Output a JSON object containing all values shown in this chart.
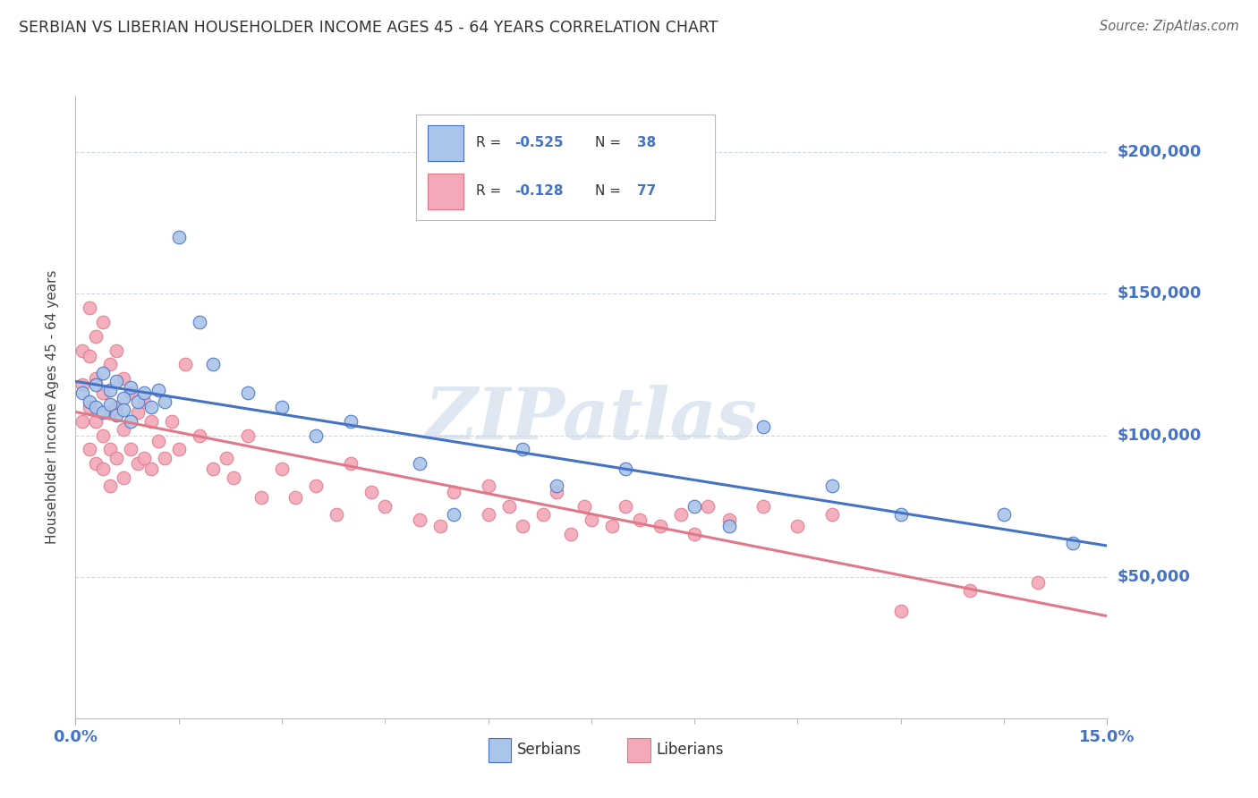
{
  "title": "SERBIAN VS LIBERIAN HOUSEHOLDER INCOME AGES 45 - 64 YEARS CORRELATION CHART",
  "source": "Source: ZipAtlas.com",
  "ylabel": "Householder Income Ages 45 - 64 years",
  "ytick_labels": [
    "$50,000",
    "$100,000",
    "$150,000",
    "$200,000"
  ],
  "ytick_values": [
    50000,
    100000,
    150000,
    200000
  ],
  "ylim": [
    0,
    220000
  ],
  "xlim": [
    0.0,
    0.15
  ],
  "serb_color": "#aac4ea",
  "liber_color": "#f4a8b8",
  "serb_edge_color": "#4472c4",
  "liber_edge_color": "#e07888",
  "serb_line_color": "#4472c4",
  "liber_line_color": "#e07888",
  "tick_label_color": "#4472c4",
  "serb_R": -0.525,
  "serb_N": 38,
  "liber_R": -0.128,
  "liber_N": 77,
  "background_color": "#ffffff",
  "grid_color": "#c8d4e8",
  "watermark_text": "ZIPatlas",
  "serbians_x": [
    0.001,
    0.002,
    0.003,
    0.003,
    0.004,
    0.004,
    0.005,
    0.005,
    0.006,
    0.006,
    0.007,
    0.007,
    0.008,
    0.008,
    0.009,
    0.01,
    0.011,
    0.012,
    0.013,
    0.015,
    0.018,
    0.02,
    0.025,
    0.03,
    0.035,
    0.04,
    0.05,
    0.055,
    0.065,
    0.07,
    0.08,
    0.09,
    0.095,
    0.1,
    0.11,
    0.12,
    0.135,
    0.145
  ],
  "serbians_y": [
    115000,
    112000,
    118000,
    110000,
    122000,
    108000,
    116000,
    111000,
    119000,
    107000,
    113000,
    109000,
    117000,
    105000,
    112000,
    115000,
    110000,
    116000,
    112000,
    170000,
    140000,
    125000,
    115000,
    110000,
    100000,
    105000,
    90000,
    72000,
    95000,
    82000,
    88000,
    75000,
    68000,
    103000,
    82000,
    72000,
    72000,
    62000
  ],
  "liberians_x": [
    0.001,
    0.001,
    0.001,
    0.002,
    0.002,
    0.002,
    0.002,
    0.003,
    0.003,
    0.003,
    0.003,
    0.004,
    0.004,
    0.004,
    0.004,
    0.005,
    0.005,
    0.005,
    0.005,
    0.006,
    0.006,
    0.006,
    0.007,
    0.007,
    0.007,
    0.008,
    0.008,
    0.009,
    0.009,
    0.01,
    0.01,
    0.011,
    0.011,
    0.012,
    0.013,
    0.014,
    0.015,
    0.016,
    0.018,
    0.02,
    0.022,
    0.023,
    0.025,
    0.027,
    0.03,
    0.032,
    0.035,
    0.038,
    0.04,
    0.043,
    0.045,
    0.05,
    0.053,
    0.055,
    0.06,
    0.06,
    0.063,
    0.065,
    0.068,
    0.07,
    0.072,
    0.074,
    0.075,
    0.078,
    0.08,
    0.082,
    0.085,
    0.088,
    0.09,
    0.092,
    0.095,
    0.1,
    0.105,
    0.11,
    0.12,
    0.13,
    0.14
  ],
  "liberians_y": [
    130000,
    118000,
    105000,
    145000,
    128000,
    110000,
    95000,
    135000,
    120000,
    105000,
    90000,
    140000,
    115000,
    100000,
    88000,
    125000,
    108000,
    95000,
    82000,
    130000,
    110000,
    92000,
    120000,
    102000,
    85000,
    115000,
    95000,
    108000,
    90000,
    112000,
    92000,
    105000,
    88000,
    98000,
    92000,
    105000,
    95000,
    125000,
    100000,
    88000,
    92000,
    85000,
    100000,
    78000,
    88000,
    78000,
    82000,
    72000,
    90000,
    80000,
    75000,
    70000,
    68000,
    80000,
    72000,
    82000,
    75000,
    68000,
    72000,
    80000,
    65000,
    75000,
    70000,
    68000,
    75000,
    70000,
    68000,
    72000,
    65000,
    75000,
    70000,
    75000,
    68000,
    72000,
    38000,
    45000,
    48000
  ]
}
